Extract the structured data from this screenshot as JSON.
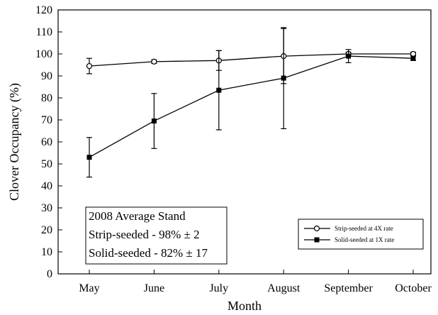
{
  "chart_data": {
    "type": "line",
    "categories": [
      "May",
      "June",
      "July",
      "August",
      "September",
      "October"
    ],
    "xlabel": "Month",
    "ylabel": "Clover Occupancy (%)",
    "ylim": [
      0,
      120
    ],
    "yticks": [
      0,
      10,
      20,
      30,
      40,
      50,
      60,
      70,
      80,
      90,
      100,
      110,
      120
    ],
    "grid": false,
    "legend_position": "bottom-right",
    "series": [
      {
        "name": "Strip-seeded at 4X rate",
        "marker": "open-circle",
        "values": [
          94.5,
          96.5,
          97,
          99,
          100,
          100
        ],
        "error": [
          3.5,
          0.8,
          4.5,
          12.5,
          0.8,
          0.8
        ]
      },
      {
        "name": "Solid-seeded at 1X rate",
        "marker": "filled-square",
        "values": [
          53,
          69.5,
          83.5,
          89,
          99,
          98
        ],
        "error": [
          9,
          12.5,
          18,
          23,
          3,
          1
        ]
      }
    ],
    "annotation": {
      "lines": [
        "2008 Average Stand",
        "Strip-seeded - 98% ± 2",
        "Solid-seeded - 82% ± 17"
      ]
    }
  }
}
